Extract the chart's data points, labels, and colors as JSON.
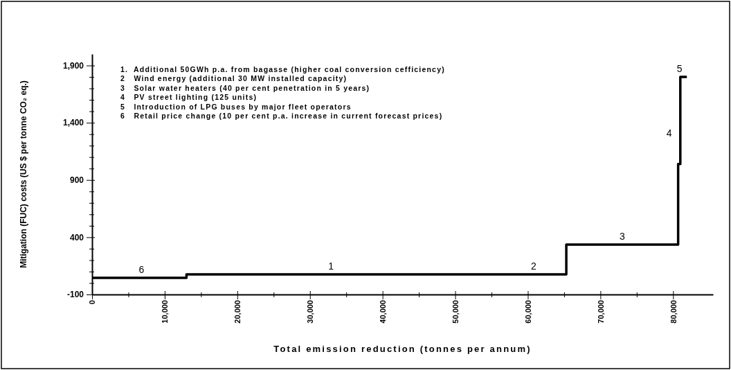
{
  "chart_data": {
    "type": "step",
    "xlabel": "Total emission reduction (tonnes per annum)",
    "ylabel": "Mitigation (FUC) costs (US $ per tonne CO₂ eq.)",
    "x": [
      0,
      13000,
      55000,
      65300,
      80700,
      81000,
      81900
    ],
    "series": [
      {
        "color": "#000000",
        "values": [
          46,
          75,
          75,
          335,
          1040,
          1800,
          1800
        ]
      }
    ],
    "xlim": [
      0,
      85500
    ],
    "xticks": [
      0,
      {
        "value": 5000,
        "label": null
      },
      {
        "value": 10000,
        "label": "10,000"
      },
      {
        "value": 15000,
        "label": null
      },
      {
        "value": 20000,
        "label": "20,000"
      },
      {
        "value": 25000,
        "label": null
      },
      {
        "value": 30000,
        "label": "30,000"
      },
      {
        "value": 35000,
        "label": null
      },
      {
        "value": 40000,
        "label": "40,000"
      },
      {
        "value": 45000,
        "label": null
      },
      {
        "value": 50000,
        "label": "50,000"
      },
      {
        "value": 55000,
        "label": null
      },
      {
        "value": 60000,
        "label": "60,000"
      },
      {
        "value": 65000,
        "label": null
      },
      {
        "value": 70000,
        "label": "70,000"
      },
      {
        "value": 75000,
        "label": null
      },
      {
        "value": 80000,
        "label": "80,000"
      }
    ],
    "ylim": [
      -100,
      2000
    ],
    "yticks": [
      -100,
      {
        "value": 0,
        "label": null
      },
      {
        "value": 100,
        "label": null
      },
      {
        "value": 200,
        "label": null
      },
      {
        "value": 300,
        "label": null
      },
      400,
      {
        "value": 500,
        "label": null
      },
      {
        "value": 600,
        "label": null
      },
      {
        "value": 700,
        "label": null
      },
      {
        "value": 800,
        "label": null
      },
      900,
      {
        "value": 1000,
        "label": null
      },
      {
        "value": 1100,
        "label": null
      },
      {
        "value": 1200,
        "label": null
      },
      {
        "value": 1300,
        "label": null
      },
      {
        "value": 1400,
        "label": "1,400"
      },
      {
        "value": 1500,
        "label": null
      },
      {
        "value": 1600,
        "label": null
      },
      {
        "value": 1700,
        "label": null
      },
      {
        "value": 1800,
        "label": null
      },
      {
        "value": 1900,
        "label": "1,900"
      }
    ],
    "grid": false,
    "marker": "none",
    "line_style": "solid",
    "annotations": [
      "1.  Additional 50GWh p.a. from bagasse (higher coal conversion cefficiency)",
      "2   Wind energy (additional 30 MW installed capacity)",
      "3   Solar water heaters (40 per cent penetration in 5 years)",
      "4   PV street lighting (125 units)",
      "5   Introduction of LPG buses by major fleet operators",
      "6   Retail price change (10 per cent p.a. increase in current forecast prices)",
      {
        "text": "6",
        "x": 6800,
        "y": 46
      },
      {
        "text": "1",
        "x": 32900,
        "y": 75
      },
      {
        "text": "2",
        "x": 60800,
        "y": 75
      },
      {
        "text": "3",
        "x": 73000,
        "y": 335
      },
      {
        "text": "4",
        "x": 80700,
        "y": 1040
      },
      {
        "text": "5",
        "x": 80900,
        "y": 1800
      }
    ]
  }
}
